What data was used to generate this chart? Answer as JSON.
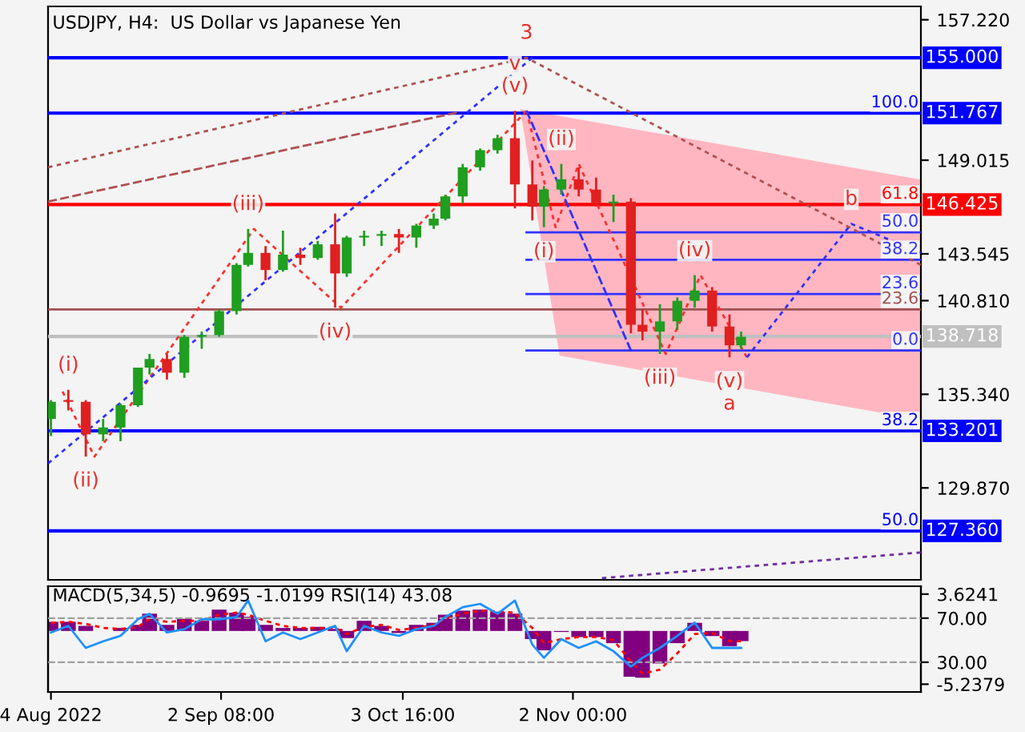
{
  "chart_data": [
    {
      "type": "candlestick",
      "title": "USDJPY, H4:  US Dollar vs Japanese Yen",
      "tick_labels": "y",
      "x": [
        "2022-08-04",
        "2022-08-07",
        "2022-08-10",
        "2022-08-13",
        "2022-08-16",
        "2022-08-19",
        "2022-08-21",
        "2022-08-24",
        "2022-08-27",
        "2022-08-30",
        "2022-09-02",
        "2022-09-05",
        "2022-09-07",
        "2022-09-10",
        "2022-09-13",
        "2022-09-16",
        "2022-09-19",
        "2022-09-22",
        "2022-09-24",
        "2022-09-27",
        "2022-09-30",
        "2022-10-03",
        "2022-10-06",
        "2022-10-09",
        "2022-10-11",
        "2022-10-14",
        "2022-10-17",
        "2022-10-20",
        "2022-10-23",
        "2022-10-26",
        "2022-10-28",
        "2022-10-31",
        "2022-11-03",
        "2022-11-06",
        "2022-11-09",
        "2022-11-12",
        "2022-11-14",
        "2022-11-17",
        "2022-11-20",
        "2022-11-23",
        "2022-11-26",
        "2022-11-29",
        "2022-12-01"
      ],
      "ohlc": [
        [
          133.9,
          135.0,
          132.9,
          134.9
        ],
        [
          135.0,
          135.6,
          134.4,
          134.9
        ],
        [
          134.9,
          135.0,
          131.7,
          133.0
        ],
        [
          133.0,
          133.9,
          132.6,
          133.4
        ],
        [
          133.4,
          134.8,
          132.6,
          134.7
        ],
        [
          134.7,
          136.9,
          134.6,
          136.9
        ],
        [
          136.9,
          137.7,
          136.5,
          137.4
        ],
        [
          137.4,
          137.7,
          136.2,
          136.6
        ],
        [
          136.6,
          138.8,
          136.3,
          138.7
        ],
        [
          138.7,
          139.0,
          138.0,
          138.8
        ],
        [
          138.8,
          140.3,
          138.7,
          140.2
        ],
        [
          140.2,
          143.0,
          140.0,
          142.9
        ],
        [
          142.9,
          145.0,
          142.8,
          143.6
        ],
        [
          143.6,
          144.0,
          142.0,
          142.6
        ],
        [
          142.6,
          144.9,
          142.5,
          143.5
        ],
        [
          143.5,
          143.9,
          142.9,
          143.3
        ],
        [
          143.3,
          144.3,
          143.2,
          144.1
        ],
        [
          144.1,
          145.9,
          140.4,
          142.4
        ],
        [
          142.4,
          144.6,
          142.2,
          144.5
        ],
        [
          144.5,
          144.9,
          144.0,
          144.6
        ],
        [
          144.6,
          144.9,
          144.0,
          144.7
        ],
        [
          144.7,
          145.0,
          143.6,
          144.5
        ],
        [
          144.5,
          145.3,
          143.9,
          145.2
        ],
        [
          145.2,
          145.9,
          145.0,
          145.6
        ],
        [
          145.6,
          147.0,
          145.5,
          146.9
        ],
        [
          146.9,
          148.8,
          146.5,
          148.6
        ],
        [
          148.6,
          149.7,
          148.4,
          149.6
        ],
        [
          149.6,
          150.5,
          149.4,
          150.3
        ],
        [
          150.3,
          151.9,
          146.2,
          147.6
        ],
        [
          147.6,
          149.0,
          145.5,
          146.3
        ],
        [
          146.3,
          147.5,
          145.1,
          147.3
        ],
        [
          147.3,
          148.8,
          147.0,
          147.9
        ],
        [
          147.9,
          148.6,
          146.9,
          147.3
        ],
        [
          147.3,
          148.0,
          146.3,
          146.5
        ],
        [
          146.5,
          147.0,
          145.4,
          146.6
        ],
        [
          146.6,
          146.8,
          138.9,
          139.4
        ],
        [
          139.4,
          140.3,
          138.5,
          139.0
        ],
        [
          139.0,
          140.6,
          137.7,
          139.6
        ],
        [
          139.6,
          141.0,
          139.1,
          140.8
        ],
        [
          140.8,
          142.3,
          140.4,
          141.4
        ],
        [
          141.4,
          141.6,
          139.0,
          139.3
        ],
        [
          139.3,
          140.0,
          137.5,
          138.2
        ],
        [
          138.2,
          139.0,
          138.0,
          138.7
        ]
      ],
      "colors": [
        "#1f9e1f",
        "#e02020",
        "#e02020",
        "#1f9e1f",
        "#1f9e1f",
        "#1f9e1f",
        "#1f9e1f",
        "#e02020",
        "#1f9e1f",
        "#1f9e1f",
        "#1f9e1f",
        "#1f9e1f",
        "#1f9e1f",
        "#e02020",
        "#1f9e1f",
        "#e02020",
        "#1f9e1f",
        "#e02020",
        "#1f9e1f",
        "#1f9e1f",
        "#1f9e1f",
        "#e02020",
        "#1f9e1f",
        "#1f9e1f",
        "#1f9e1f",
        "#1f9e1f",
        "#1f9e1f",
        "#1f9e1f",
        "#e02020",
        "#e02020",
        "#1f9e1f",
        "#1f9e1f",
        "#e02020",
        "#e02020",
        "#1f9e1f",
        "#e02020",
        "#e02020",
        "#1f9e1f",
        "#1f9e1f",
        "#1f9e1f",
        "#e02020",
        "#e02020",
        "#1f9e1f"
      ],
      "series": [
        {
          "type": "line",
          "color": "#3333ff",
          "x": [
            "2022-10-25",
            "2023-01-01"
          ],
          "values": [
            144.8,
            144.8
          ]
        },
        {
          "type": "line",
          "color": "#3333ff",
          "x": [
            "2022-10-25",
            "2023-01-01"
          ],
          "values": [
            143.2,
            143.2
          ]
        },
        {
          "type": "line",
          "color": "#3333ff",
          "x": [
            "2022-10-25",
            "2023-01-01"
          ],
          "values": [
            141.2,
            141.2
          ]
        },
        {
          "type": "line",
          "color": "#3333ff",
          "x": [
            "2022-10-25",
            "2023-01-01"
          ],
          "values": [
            137.9,
            137.9
          ]
        },
        {
          "type": "line",
          "color": "#a05050",
          "x": [
            "2022-08-03T12:00",
            "2023-01-01"
          ],
          "values": [
            140.3,
            140.3
          ]
        },
        {
          "type": "line",
          "color": "#ff3030",
          "line_style": "dotted",
          "x": [
            "2022-08-06",
            "2022-08-11T12:00",
            "2022-09-08",
            "2022-09-23",
            "2022-10-25"
          ],
          "values": [
            135.5,
            131.7,
            145.0,
            140.4,
            151.9
          ]
        },
        {
          "type": "line",
          "color": "#ff3030",
          "line_style": "dotted",
          "x": [
            "2022-10-25",
            "2022-10-30",
            "2022-11-03",
            "2022-11-18",
            "2022-11-24",
            "2022-12-02"
          ],
          "values": [
            151.9,
            145.1,
            148.8,
            137.7,
            142.3,
            137.5
          ]
        },
        {
          "type": "line",
          "color": "#3030ff",
          "line_style": "dotted",
          "x": [
            "2022-08-03T12:00",
            "2022-10-26"
          ],
          "values": [
            131.3,
            155.0
          ]
        },
        {
          "type": "line",
          "color": "#3030ff",
          "line_style": "dotted",
          "x": [
            "2022-12-02",
            "2022-12-20",
            "2023-01-01"
          ],
          "values": [
            137.5,
            145.3,
            143.6
          ]
        },
        {
          "type": "line",
          "color": "#3030ff",
          "line_style": "dashed",
          "x": [
            "2022-10-25",
            "2022-11-12"
          ],
          "values": [
            151.9,
            137.9
          ]
        },
        {
          "type": "line",
          "color": "#b05050",
          "line_style": "dotted",
          "x": [
            "2022-08-03T12:00",
            "2022-10-25",
            "2023-01-01"
          ],
          "values": [
            148.6,
            155.0,
            142.9
          ]
        },
        {
          "type": "line",
          "color": "#b05050",
          "line_style": "dashed",
          "x": [
            "2022-08-03T12:00",
            "2022-10-13"
          ],
          "values": [
            146.6,
            151.8
          ]
        },
        {
          "type": "line",
          "color": "#7030a0",
          "line_style": "dotted",
          "x": [
            "2022-11-07",
            "2023-01-01"
          ],
          "values": [
            124.6,
            126.1
          ]
        }
      ],
      "ref_lines": [
        {
          "axis": "y",
          "value": 155.0,
          "label": "155.000",
          "color": "#0000ff"
        },
        {
          "axis": "y",
          "value": 151.767,
          "label": "151.767",
          "color": "#0000ff"
        },
        {
          "axis": "y",
          "value": 146.425,
          "label": "146.425",
          "color": "#ff0000"
        },
        {
          "axis": "y",
          "value": 138.718,
          "label": "138.718",
          "color": "#c0c0c0"
        },
        {
          "axis": "y",
          "value": 133.201,
          "label": "133.201",
          "color": "#0000ff"
        },
        {
          "axis": "y",
          "value": 127.36,
          "label": "127.360",
          "color": "#0000ff"
        }
      ],
      "annotations": [
        {
          "text": "(v)",
          "x": "2022-10-23",
          "y": 151.9
        },
        {
          "text": "v",
          "x": "2022-10-23",
          "y": 151.9
        },
        {
          "text": "3",
          "x": "2022-10-25",
          "y": 155.0
        },
        {
          "text": "(i)",
          "x": "2022-08-07",
          "y": 135.6
        },
        {
          "text": "(ii)",
          "x": "2022-08-10",
          "y": 131.7
        },
        {
          "text": "(iii)",
          "x": "2022-09-07",
          "y": 145.0
        },
        {
          "text": "(iv)",
          "x": "2022-09-22",
          "y": 140.4
        },
        {
          "text": "(i)",
          "x": "2022-10-28",
          "y": 145.1
        },
        {
          "text": "(ii)",
          "x": "2022-10-31",
          "y": 148.8
        },
        {
          "text": "(iii)",
          "x": "2022-11-17",
          "y": 137.7
        },
        {
          "text": "(iv)",
          "x": "2022-11-23",
          "y": 142.3
        },
        {
          "text": "(v)",
          "x": "2022-11-29",
          "y": 137.5
        },
        {
          "text": "a",
          "x": "2022-11-29",
          "y": 137.5
        },
        {
          "text": "b",
          "x": "2022-12-20",
          "y": 145.3
        },
        {
          "text": "100.0",
          "x": "2023-01-01",
          "y": 151.767
        },
        {
          "text": "61.8",
          "x": "2023-01-01",
          "y": 146.425
        },
        {
          "text": "50.0",
          "x": "2023-01-01",
          "y": 144.8
        },
        {
          "text": "38.2",
          "x": "2023-01-01",
          "y": 143.2
        },
        {
          "text": "23.6",
          "x": "2023-01-01",
          "y": 141.2
        },
        {
          "text": "23.6",
          "x": "2023-01-01",
          "y": 140.3
        },
        {
          "text": "0.0",
          "x": "2023-01-01",
          "y": 137.9
        },
        {
          "text": "38.2",
          "x": "2023-01-01",
          "y": 133.201
        },
        {
          "text": "50.0",
          "x": "2023-01-01",
          "y": 127.36
        }
      ],
      "xlim": [
        "2022-08-03T12:00",
        "2023-01-01T00:00"
      ],
      "ylim": [
        124.5,
        158.0
      ],
      "yticks": [
        {
          "value": 157.22,
          "label": "157.220"
        },
        {
          "value": 149.015,
          "label": "149.015"
        },
        {
          "value": 143.545,
          "label": "143.545"
        },
        {
          "value": 140.81,
          "label": "140.810"
        },
        {
          "value": 135.34,
          "label": "135.340"
        },
        {
          "value": 129.87,
          "label": "129.870"
        }
      ]
    },
    {
      "type": "bar",
      "title": "MACD(5,34,5) -0.9695 -1.0199 RSI(14) 43.08",
      "x": [
        "2022-08-04",
        "2022-08-07",
        "2022-08-10",
        "2022-08-13",
        "2022-08-16",
        "2022-08-19",
        "2022-08-21",
        "2022-08-24",
        "2022-08-27",
        "2022-08-30",
        "2022-09-02",
        "2022-09-05",
        "2022-09-07",
        "2022-09-10",
        "2022-09-13",
        "2022-09-16",
        "2022-09-19",
        "2022-09-22",
        "2022-09-24",
        "2022-09-27",
        "2022-09-30",
        "2022-10-03",
        "2022-10-06",
        "2022-10-09",
        "2022-10-11",
        "2022-10-14",
        "2022-10-17",
        "2022-10-20",
        "2022-10-23",
        "2022-10-26",
        "2022-10-28",
        "2022-10-31",
        "2022-11-03",
        "2022-11-06",
        "2022-11-09",
        "2022-11-12",
        "2022-11-14",
        "2022-11-17",
        "2022-11-20",
        "2022-11-23",
        "2022-11-26",
        "2022-11-29",
        "2022-12-01"
      ],
      "series": [
        {
          "type": "bar",
          "color": "#800080",
          "values": [
            0.9,
            0.9,
            0.5,
            0.0,
            0.3,
            0.6,
            1.7,
            0.6,
            1.2,
            1.0,
            2.1,
            1.8,
            1.4,
            0.6,
            0.3,
            0.3,
            0.4,
            0.2,
            -0.7,
            1.0,
            0.5,
            -0.2,
            0.6,
            0.8,
            1.6,
            2.0,
            2.1,
            1.9,
            1.7,
            -0.8,
            -1.9,
            -0.1,
            -0.6,
            -0.6,
            -1.2,
            -4.5,
            -4.6,
            -3.2,
            -1.2,
            0.8,
            -0.5,
            -1.5,
            -1.0
          ]
        },
        {
          "type": "line",
          "color": "#ff0000",
          "line_style": "dotted",
          "values": [
            0.8,
            0.9,
            0.7,
            0.3,
            0.2,
            0.4,
            1.2,
            0.9,
            1.0,
            1.0,
            1.6,
            1.8,
            1.6,
            1.0,
            0.5,
            0.3,
            0.3,
            0.3,
            -0.3,
            0.4,
            0.6,
            0.1,
            0.3,
            0.6,
            1.2,
            1.7,
            2.0,
            1.9,
            1.8,
            0.3,
            -1.2,
            -0.8,
            -0.6,
            -0.6,
            -0.9,
            -3.0,
            -4.2,
            -3.8,
            -2.2,
            -0.3,
            -0.2,
            -1.0,
            -1.0
          ]
        },
        {
          "type": "line",
          "color": "#1e90ff",
          "axis": "y2",
          "values": [
            57,
            63,
            43,
            49,
            54,
            69,
            74,
            57,
            60,
            69,
            69,
            71,
            86,
            49,
            57,
            51,
            57,
            63,
            40,
            63,
            57,
            54,
            60,
            63,
            71,
            80,
            83,
            74,
            86,
            46,
            34,
            51,
            43,
            49,
            40,
            26,
            34,
            43,
            54,
            66,
            43,
            43,
            43
          ]
        }
      ],
      "ref_lines": [
        {
          "axis": "y2",
          "value": 70,
          "color": "#a0a0a0",
          "line_style": "dashed"
        },
        {
          "axis": "y2",
          "value": 30,
          "color": "#a0a0a0",
          "line_style": "dashed"
        }
      ],
      "xlim": [
        "2022-08-03T12:00",
        "2023-01-01T00:00"
      ],
      "xticks": [
        {
          "value": "2022-08-04T00:00",
          "label": "4 Aug 2022"
        },
        {
          "value": "2022-09-02T08:00",
          "label": "2 Sep 08:00"
        },
        {
          "value": "2022-10-03T16:00",
          "label": "3 Oct 16:00"
        },
        {
          "value": "2022-11-02T00:00",
          "label": "2 Nov 00:00"
        }
      ],
      "ylim": [
        -6.0,
        4.4
      ],
      "yticks": [
        {
          "value": 3.6241,
          "label": "3.6241"
        },
        {
          "value": -5.2379,
          "label": "-5.2379"
        }
      ],
      "y2lim": [
        3,
        99
      ],
      "y2ticks": [
        {
          "value": 70,
          "label": "70.00"
        },
        {
          "value": 30,
          "label": "30.00"
        }
      ]
    }
  ]
}
